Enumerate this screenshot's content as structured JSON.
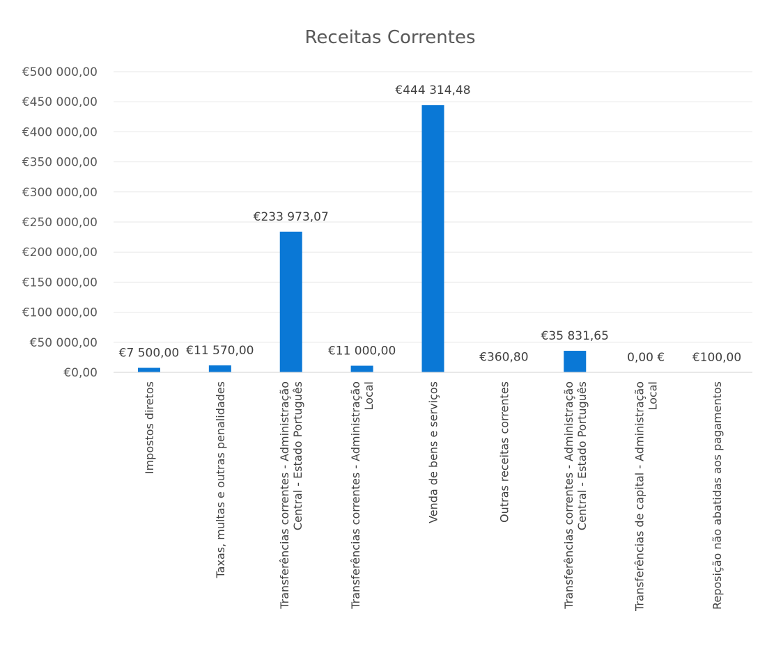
{
  "chart_data": {
    "type": "bar",
    "title": "Receitas Correntes",
    "xlabel": "",
    "ylabel": "",
    "ylim": [
      0,
      500000
    ],
    "grid": true,
    "legend": "none",
    "colors": {
      "bar": "#0a78d6"
    },
    "y_ticks": [
      {
        "value": 0,
        "label": "€0,00"
      },
      {
        "value": 50000,
        "label": "€50 000,00"
      },
      {
        "value": 100000,
        "label": "€100 000,00"
      },
      {
        "value": 150000,
        "label": "€150 000,00"
      },
      {
        "value": 200000,
        "label": "€200 000,00"
      },
      {
        "value": 250000,
        "label": "€250 000,00"
      },
      {
        "value": 300000,
        "label": "€300 000,00"
      },
      {
        "value": 350000,
        "label": "€350 000,00"
      },
      {
        "value": 400000,
        "label": "€400 000,00"
      },
      {
        "value": 450000,
        "label": "€450 000,00"
      },
      {
        "value": 500000,
        "label": "€500 000,00"
      }
    ],
    "categories": [
      [
        "Impostos diretos"
      ],
      [
        "Taxas, multas e outras penalidades"
      ],
      [
        "Transferências correntes - Administração",
        "Central - Estado Português"
      ],
      [
        "Transferências correntes - Administração",
        "Local"
      ],
      [
        "Venda de bens e serviços"
      ],
      [
        "Outras receitas correntes"
      ],
      [
        "Transferências correntes - Administração",
        "Central - Estado Português"
      ],
      [
        "Transferências de capital - Administração",
        "Local"
      ],
      [
        "Reposição não abatidas aos pagamentos"
      ]
    ],
    "values": [
      7500.0,
      11570.0,
      233973.07,
      11000.0,
      444314.48,
      360.8,
      35831.65,
      0.0,
      100.0
    ],
    "data_labels": [
      "€7 500,00",
      "€11 570,00",
      "€233 973,07",
      "€11 000,00",
      "€444 314,48",
      "€360,80",
      "€35 831,65",
      "0,00 €",
      "€100,00"
    ]
  }
}
